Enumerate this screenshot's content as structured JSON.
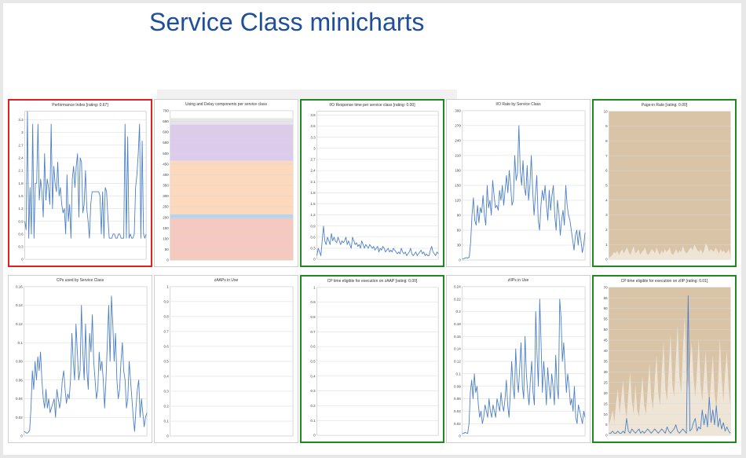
{
  "title": "Service Class minicharts",
  "chart_data": [
    {
      "id": "perf-index",
      "type": "line",
      "title": "Performance Index [rating: 0.67]",
      "status": "red",
      "ylim": [
        0,
        3.5
      ],
      "yticks": [
        "0",
        "0.3",
        "0.6",
        "0.9",
        "1.2",
        "1.5",
        "1.8",
        "2.1",
        "2.4",
        "2.7",
        "3",
        "3.3"
      ],
      "series": [
        {
          "color": "#4a7fc7",
          "values": [
            0.9,
            0.7,
            3.5,
            0.5,
            1.7,
            0.6,
            3.2,
            0.5,
            1.8,
            1.8,
            3.2,
            1.4,
            1.9,
            1.6,
            1.0,
            2.5,
            1.4,
            1.9,
            1.7,
            1.3,
            3.2,
            1.2,
            2.2,
            1.8,
            1.6,
            2.3,
            1.5,
            1.7,
            1.3,
            1.1,
            1.2,
            0.6,
            2.0,
            0.9,
            1.3,
            0.5,
            1.9,
            2.2,
            1.7,
            2.2,
            2.5,
            1.0,
            2.4,
            2.3,
            1.1,
            1.3,
            2.1,
            1.2,
            0.9,
            0.5,
            1.3,
            1.6,
            1.6,
            1.6,
            1.6,
            1.6,
            1.6,
            1.5,
            0.6,
            1.6,
            0.5,
            1.7,
            1.6,
            1.0,
            0.5,
            0.5,
            0.5,
            0.6,
            0.6,
            0.5,
            0.5,
            0.6,
            0.6,
            0.5,
            0.5,
            0.5,
            3.2,
            0.5,
            2.9,
            0.5,
            0.6,
            0.5,
            0.5,
            0.6,
            1.7,
            2.0,
            2.5,
            3.2,
            0.5,
            2.8,
            0.6,
            0.5,
            0.6
          ]
        }
      ]
    },
    {
      "id": "using-delay",
      "type": "area",
      "title": "Using and Delay components per service class",
      "status": "none",
      "ylim": [
        0,
        700
      ],
      "yticks": [
        "0",
        "50",
        "100",
        "150",
        "200",
        "250",
        "300",
        "350",
        "400",
        "450",
        "500",
        "550",
        "600",
        "650",
        "700"
      ],
      "series": [
        {
          "color": "#f5c8c0",
          "from": 0,
          "to": 195
        },
        {
          "color": "#b8d4ea",
          "from": 195,
          "to": 215
        },
        {
          "color": "#fcd9bc",
          "from": 215,
          "to": 465
        },
        {
          "color": "#dccbea",
          "from": 465,
          "to": 635
        },
        {
          "color": "#e6e6e6",
          "from": 635,
          "to": 665
        }
      ]
    },
    {
      "id": "io-response",
      "type": "line",
      "title": "I/O Response time per service class [rating: 0.00]",
      "status": "green",
      "ylim": [
        0,
        4
      ],
      "yticks": [
        "0",
        "0.3",
        "0.6",
        "0.9",
        "1.2",
        "1.5",
        "1.8",
        "2.1",
        "2.4",
        "2.7",
        "3",
        "3.3",
        "3.6",
        "3.9"
      ],
      "series": [
        {
          "color": "#4a7fc7",
          "values": [
            0.1,
            0.3,
            0.2,
            0.1,
            0.5,
            0.9,
            0.5,
            0.4,
            0.6,
            0.5,
            0.4,
            0.7,
            0.5,
            0.6,
            0.5,
            0.45,
            0.6,
            0.5,
            0.4,
            0.5,
            0.45,
            0.5,
            0.6,
            0.4,
            0.5,
            0.4,
            0.3,
            0.6,
            0.5,
            0.4,
            0.45,
            0.35,
            0.4,
            0.3,
            0.5,
            0.4,
            0.3,
            0.4,
            0.35,
            0.3,
            0.4,
            0.35,
            0.3,
            0.35,
            0.25,
            0.3,
            0.35,
            0.2,
            0.3,
            0.25,
            0.35,
            0.3,
            0.2,
            0.25,
            0.3,
            0.2,
            0.25,
            0.2,
            0.3,
            0.25,
            0.2,
            0.15,
            0.2,
            0.15,
            0.3,
            0.2,
            0.15,
            0.2,
            0.1,
            0.15,
            0.2,
            0.3,
            0.15,
            0.1,
            0.15,
            0.2,
            0.1,
            0.15,
            0.2,
            0.25,
            0.15,
            0.2,
            0.1,
            0.15,
            0.1,
            0.1,
            0.25,
            0.35,
            0.2,
            0.15,
            0.1,
            0.2,
            0.15
          ]
        }
      ]
    },
    {
      "id": "io-rate",
      "type": "line",
      "title": "I/O Rate by Service Class",
      "status": "none",
      "ylim": [
        0,
        300
      ],
      "yticks": [
        "0",
        "30",
        "60",
        "90",
        "120",
        "150",
        "180",
        "210",
        "240",
        "270",
        "300"
      ],
      "series": [
        {
          "color": "#4a7fc7",
          "values": [
            2,
            3,
            4,
            5,
            4,
            6,
            35,
            90,
            125,
            80,
            70,
            110,
            75,
            105,
            95,
            130,
            90,
            70,
            150,
            105,
            120,
            90,
            160,
            130,
            105,
            110,
            100,
            140,
            120,
            150,
            110,
            140,
            170,
            135,
            180,
            150,
            110,
            120,
            210,
            160,
            175,
            270,
            180,
            150,
            200,
            145,
            130,
            190,
            120,
            150,
            210,
            140,
            90,
            130,
            170,
            80,
            60,
            110,
            140,
            120,
            150,
            110,
            80,
            140,
            100,
            130,
            150,
            90,
            60,
            120,
            95,
            50,
            80,
            100,
            70,
            150,
            110,
            90,
            80,
            60,
            40,
            20,
            50,
            60,
            30,
            60,
            40,
            15,
            30,
            55
          ]
        }
      ]
    },
    {
      "id": "page-in",
      "type": "area",
      "title": "Page-in Rate [rating: 0.00]",
      "status": "green",
      "ylim": [
        0,
        10
      ],
      "yticks": [
        "0",
        "1",
        "2",
        "3",
        "4",
        "5",
        "6",
        "7",
        "8",
        "9",
        "10"
      ],
      "series": [
        {
          "color": "#d9c4a8",
          "values": [
            10
          ]
        },
        {
          "color": "#efe5d6",
          "values": [
            0.1,
            0.2,
            0.3,
            0.5,
            0.4,
            0.6,
            0.3,
            0.5,
            0.7,
            0.4,
            0.6,
            0.8,
            0.5,
            0.3,
            0.6,
            0.9,
            0.4,
            0.5,
            0.7,
            0.3,
            0.5,
            0.6,
            0.8,
            0.4,
            0.3,
            0.5,
            0.7,
            0.6,
            0.4,
            0.8,
            0.5,
            0.3,
            0.6,
            0.4,
            0.7,
            0.5,
            0.6,
            0.8,
            0.4,
            0.3,
            0.5,
            0.7,
            0.4,
            0.6,
            0.5,
            0.9,
            0.6,
            0.4,
            0.5,
            0.7,
            0.8,
            0.6,
            1.0,
            0.8,
            0.6,
            0.5,
            0.7,
            0.4,
            0.6,
            1.1,
            0.9,
            0.5,
            0.7,
            0.6,
            0.5,
            0.8,
            0.6,
            0.4,
            0.7,
            0.5,
            0.6,
            0.4,
            0.5,
            0.7,
            0.3
          ]
        }
      ]
    },
    {
      "id": "cps-used",
      "type": "line",
      "title": "CPs used by Service Class",
      "status": "none",
      "ylim": [
        0,
        0.16
      ],
      "yticks": [
        "0",
        "0.02",
        "0.04",
        "0.06",
        "0.08",
        "0.1",
        "0.12",
        "0.14",
        "0.16"
      ],
      "series": [
        {
          "color": "#4a7fc7",
          "values": [
            0.005,
            0.004,
            0.003,
            0.004,
            0.006,
            0.03,
            0.07,
            0.05,
            0.08,
            0.06,
            0.085,
            0.07,
            0.09,
            0.06,
            0.04,
            0.03,
            0.05,
            0.03,
            0.04,
            0.025,
            0.03,
            0.035,
            0.04,
            0.02,
            0.05,
            0.04,
            0.03,
            0.04,
            0.06,
            0.07,
            0.05,
            0.035,
            0.045,
            0.04,
            0.06,
            0.11,
            0.08,
            0.06,
            0.12,
            0.09,
            0.06,
            0.07,
            0.14,
            0.09,
            0.06,
            0.12,
            0.07,
            0.05,
            0.11,
            0.09,
            0.13,
            0.08,
            0.06,
            0.04,
            0.05,
            0.09,
            0.07,
            0.08,
            0.06,
            0.03,
            0.06,
            0.1,
            0.14,
            0.08,
            0.15,
            0.12,
            0.08,
            0.11,
            0.06,
            0.04,
            0.05,
            0.08,
            0.1,
            0.07,
            0.06,
            0.03,
            0.04,
            0.08,
            0.06,
            0.04,
            0.02,
            0.005,
            0.03,
            0.05,
            0.06,
            0.02,
            0.04,
            0.025,
            0.01,
            0.02,
            0.025
          ]
        }
      ]
    },
    {
      "id": "zaaps-in-use",
      "type": "line",
      "title": "zAAPs in Use",
      "status": "none",
      "ylim": [
        0,
        1
      ],
      "yticks": [
        "0",
        "0.1",
        "0.2",
        "0.3",
        "0.4",
        "0.5",
        "0.6",
        "0.7",
        "0.8",
        "0.9",
        "1"
      ],
      "series": []
    },
    {
      "id": "cp-zaap",
      "type": "line",
      "title": "CP time eligible for execution on zAAP [rating: 0.00]",
      "status": "green",
      "ylim": [
        0,
        1
      ],
      "yticks": [
        "0",
        "0.1",
        "0.2",
        "0.3",
        "0.4",
        "0.5",
        "0.6",
        "0.7",
        "0.8",
        "0.9",
        "1"
      ],
      "series": []
    },
    {
      "id": "ziips-in-use",
      "type": "line",
      "title": "zIIPs in Use",
      "status": "none",
      "ylim": [
        0,
        0.24
      ],
      "yticks": [
        "0",
        "0.02",
        "0.04",
        "0.06",
        "0.08",
        "0.1",
        "0.12",
        "0.14",
        "0.16",
        "0.18",
        "0.2",
        "0.22",
        "0.24"
      ],
      "series": [
        {
          "color": "#4a7fc7",
          "values": [
            0.005,
            0.004,
            0.006,
            0.005,
            0.004,
            0.02,
            0.07,
            0.09,
            0.06,
            0.1,
            0.07,
            0.08,
            0.05,
            0.03,
            0.04,
            0.02,
            0.03,
            0.05,
            0.04,
            0.03,
            0.06,
            0.04,
            0.03,
            0.05,
            0.04,
            0.03,
            0.06,
            0.05,
            0.04,
            0.07,
            0.05,
            0.04,
            0.06,
            0.09,
            0.05,
            0.03,
            0.07,
            0.12,
            0.08,
            0.06,
            0.14,
            0.09,
            0.07,
            0.11,
            0.15,
            0.08,
            0.06,
            0.16,
            0.1,
            0.07,
            0.05,
            0.09,
            0.12,
            0.07,
            0.05,
            0.2,
            0.13,
            0.08,
            0.22,
            0.15,
            0.07,
            0.12,
            0.09,
            0.05,
            0.11,
            0.08,
            0.06,
            0.1,
            0.08,
            0.05,
            0.13,
            0.08,
            0.06,
            0.22,
            0.19,
            0.12,
            0.15,
            0.11,
            0.07,
            0.1,
            0.08,
            0.05,
            0.06,
            0.04,
            0.08,
            0.03,
            0.02,
            0.05,
            0.04,
            0.03,
            0.02,
            0.04,
            0.03
          ]
        }
      ]
    },
    {
      "id": "cp-ziip",
      "type": "area",
      "title": "CP time eligible for execution on zIIP [rating: 0.01]",
      "status": "green",
      "ylim": [
        0,
        70
      ],
      "yticks": [
        "0",
        "5",
        "10",
        "15",
        "20",
        "25",
        "30",
        "35",
        "40",
        "45",
        "50",
        "55",
        "60",
        "65",
        "70"
      ],
      "series": [
        {
          "color": "#d9c4a8",
          "values": [
            70
          ]
        },
        {
          "color": "#efe5d6",
          "values": [
            5,
            8,
            12,
            6,
            15,
            22,
            10,
            18,
            26,
            14,
            8,
            20,
            30,
            16,
            10,
            24,
            12,
            9,
            18,
            28,
            14,
            10,
            22,
            34,
            18,
            12,
            26,
            38,
            20,
            14,
            30,
            44,
            22,
            16,
            32,
            48,
            24,
            18,
            36,
            52,
            28,
            20,
            40,
            56,
            30,
            22,
            34,
            44,
            28,
            18,
            30,
            46,
            24,
            16,
            28,
            40,
            22,
            14,
            26,
            38,
            20,
            12,
            24,
            46,
            28,
            16,
            30,
            40,
            22,
            14
          ]
        },
        {
          "color": "#4a7fc7",
          "values": [
            1,
            1,
            2,
            1,
            1,
            2,
            1,
            1,
            2,
            1,
            8,
            2,
            1,
            3,
            2,
            1,
            2,
            3,
            1,
            2,
            1,
            2,
            3,
            2,
            1,
            2,
            3,
            2,
            1,
            2,
            3,
            2,
            1,
            4,
            2,
            1,
            2,
            3,
            5,
            2,
            1,
            2,
            3,
            2,
            1,
            66,
            2,
            3,
            6,
            8,
            2,
            4,
            3,
            12,
            5,
            10,
            4,
            18,
            6,
            12,
            5,
            14,
            4,
            8,
            3,
            6,
            2,
            4,
            2,
            1
          ]
        }
      ]
    }
  ]
}
